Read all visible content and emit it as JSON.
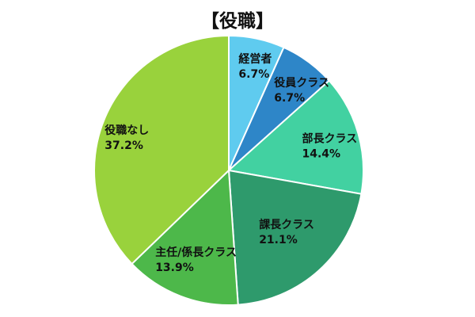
{
  "chart_data": {
    "type": "pie",
    "title": "【役職】",
    "start_angle_deg": 0,
    "direction": "clockwise",
    "slices": [
      {
        "label": "経営者",
        "value": 6.7,
        "value_label": "6.7%",
        "color": "#5fcbef"
      },
      {
        "label": "役員クラス",
        "value": 6.7,
        "value_label": "6.7%",
        "color": "#2e86c8"
      },
      {
        "label": "部長クラス",
        "value": 14.4,
        "value_label": "14.4%",
        "color": "#42d1a1"
      },
      {
        "label": "課長クラス",
        "value": 21.1,
        "value_label": "21.1%",
        "color": "#2e9a6c"
      },
      {
        "label": "主任/係長クラス",
        "value": 13.9,
        "value_label": "13.9%",
        "color": "#4db84a"
      },
      {
        "label": "役職なし",
        "value": 37.2,
        "value_label": "37.2%",
        "color": "#99d23c"
      }
    ]
  }
}
